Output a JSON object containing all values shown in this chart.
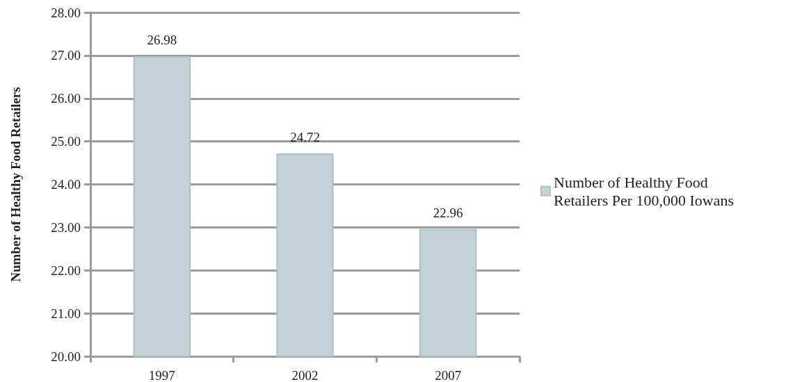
{
  "chart_data": {
    "type": "bar",
    "ylabel": "Number of Healthy Food Retailers",
    "categories": [
      "1997",
      "2002",
      "2007"
    ],
    "series": [
      {
        "name": "Number of Healthy Food Retailers Per 100,000 Iowans",
        "color": "#c3d2d7",
        "values": [
          26.98,
          24.72,
          22.96
        ]
      }
    ],
    "ylim": [
      20,
      28
    ],
    "yticks": [
      {
        "value": 20,
        "label": "20.00"
      },
      {
        "value": 21,
        "label": "21.00"
      },
      {
        "value": 22,
        "label": "22.00"
      },
      {
        "value": 23,
        "label": "23.00"
      },
      {
        "value": 24,
        "label": "24.00"
      },
      {
        "value": 25,
        "label": "25.00"
      },
      {
        "value": 26,
        "label": "26.00"
      },
      {
        "value": 27,
        "label": "27.00"
      },
      {
        "value": 28,
        "label": "28.00"
      }
    ],
    "grid": "y",
    "legend": "right",
    "data_labels": true
  }
}
